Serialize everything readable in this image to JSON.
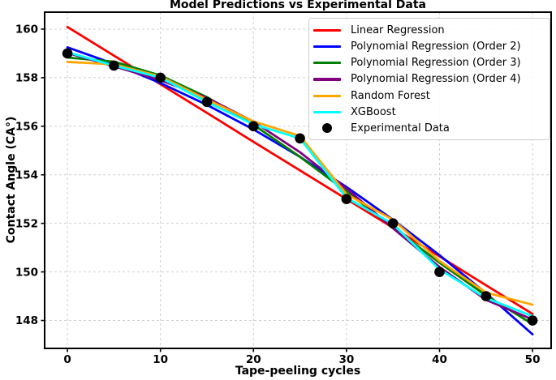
{
  "title": "Model Predictions vs Experimental Data",
  "colors": {
    "background": "#ffffff",
    "grid": "#cfcfcf",
    "spine": "#000000",
    "text": "#000000",
    "legend_border": "#cccccc"
  },
  "chart_data": {
    "type": "line",
    "title": "Model Predictions vs Experimental Data",
    "xlabel": "Tape-peeling cycles",
    "ylabel": "Contact Angle (CA°)",
    "xlim": [
      -2.45,
      52.0
    ],
    "ylim": [
      146.85,
      160.7
    ],
    "xticks": [
      0,
      10,
      20,
      30,
      40,
      50
    ],
    "yticks": [
      148,
      150,
      152,
      154,
      156,
      158,
      160
    ],
    "grid": true,
    "grid_style": "dashed",
    "legend_position": "upper right",
    "x": [
      0,
      5,
      10,
      15,
      20,
      25,
      30,
      35,
      40,
      45,
      50
    ],
    "series": [
      {
        "name": "Linear Regression",
        "color": "#ff0000",
        "values": [
          160.09,
          158.91,
          157.73,
          156.55,
          155.36,
          154.18,
          153.0,
          151.82,
          150.64,
          149.45,
          148.27
        ]
      },
      {
        "name": "Polynomial Regression (Order 2)",
        "color": "#0000ff",
        "values": [
          159.25,
          158.57,
          157.78,
          156.88,
          155.87,
          154.74,
          153.5,
          152.15,
          150.69,
          149.12,
          147.43
        ]
      },
      {
        "name": "Polynomial Regression (Order 3)",
        "color": "#008000",
        "values": [
          158.83,
          158.66,
          158.09,
          157.2,
          156.06,
          154.74,
          153.31,
          151.83,
          150.38,
          149.03,
          147.85
        ]
      },
      {
        "name": "Polynomial Regression (Order 4)",
        "color": "#800080",
        "values": [
          159.02,
          158.47,
          157.9,
          157.17,
          156.19,
          154.93,
          153.43,
          151.8,
          150.2,
          148.85,
          148.04
        ]
      },
      {
        "name": "Random Forest",
        "color": "#ffa500",
        "values": [
          158.65,
          158.55,
          158.05,
          157.1,
          156.2,
          155.6,
          153.2,
          152.15,
          150.45,
          149.15,
          148.65
        ]
      },
      {
        "name": "XGBoost",
        "color": "#00ffff",
        "values": [
          159.05,
          158.5,
          158.0,
          157.0,
          156.08,
          155.5,
          153.05,
          151.97,
          150.1,
          148.92,
          148.18
        ]
      }
    ],
    "scatter": {
      "name": "Experimental Data",
      "color": "#000000",
      "x": [
        0,
        5,
        10,
        15,
        20,
        25,
        30,
        35,
        40,
        45,
        50
      ],
      "y": [
        159,
        158.5,
        158,
        157,
        156,
        155.5,
        153,
        152,
        150,
        149,
        148
      ]
    }
  }
}
